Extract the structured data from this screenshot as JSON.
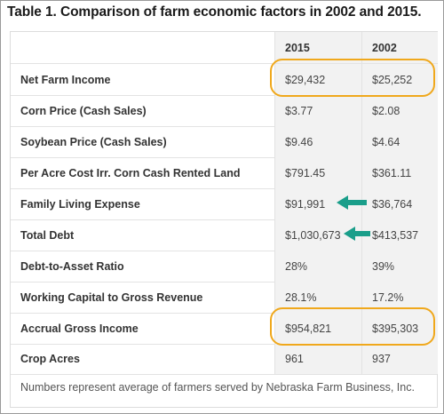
{
  "title": "Table 1. Comparison of farm economic factors in 2002 and 2015.",
  "columns": [
    "",
    "2015",
    "2002"
  ],
  "rows": [
    {
      "label": "Net Farm Income",
      "y2015": "$29,432",
      "y2002": "$25,252"
    },
    {
      "label": "Corn Price (Cash Sales)",
      "y2015": "$3.77",
      "y2002": "$2.08"
    },
    {
      "label": "Soybean Price (Cash Sales)",
      "y2015": "$9.46",
      "y2002": "$4.64"
    },
    {
      "label": "Per Acre Cost Irr. Corn Cash Rented Land",
      "y2015": "$791.45",
      "y2002": "$361.11"
    },
    {
      "label": "Family Living Expense",
      "y2015": "$91,991",
      "y2002": "$36,764"
    },
    {
      "label": "Total Debt",
      "y2015": "$1,030,673",
      "y2002": "$413,537"
    },
    {
      "label": "Debt-to-Asset Ratio",
      "y2015": "28%",
      "y2002": "39%"
    },
    {
      "label": "Working Capital to Gross Revenue",
      "y2015": "28.1%",
      "y2002": "17.2%"
    },
    {
      "label": "Accrual Gross Income",
      "y2015": "$954,821",
      "y2002": "$395,303"
    },
    {
      "label": "Crop Acres",
      "y2015": "961",
      "y2002": "937"
    }
  ],
  "footnote": "Numbers represent average of farmers served by Nebraska Farm Business, Inc.",
  "colors": {
    "highlight": "#f0a81c",
    "arrow": "#1a9e8a"
  }
}
